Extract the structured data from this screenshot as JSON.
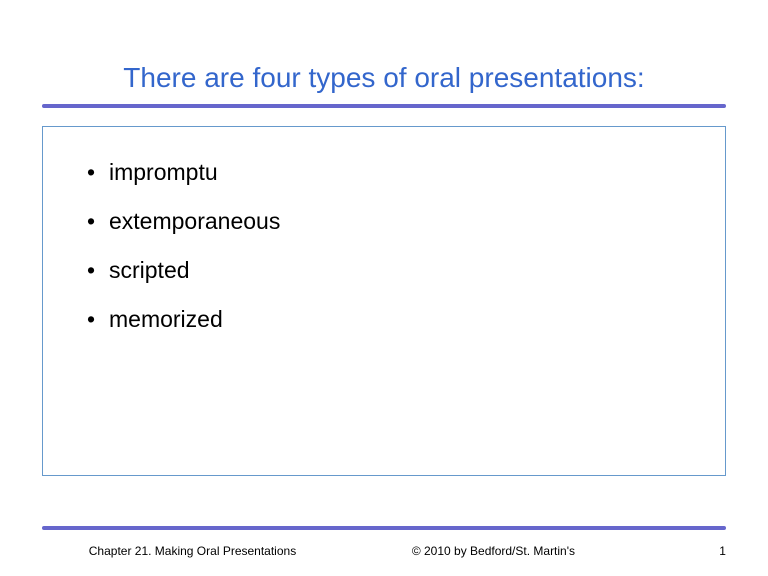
{
  "title": {
    "text": "There are four types of oral presentations:",
    "color": "#3366cc",
    "fontsize": 28
  },
  "divider": {
    "color": "#6666cc",
    "height": 4
  },
  "content_box": {
    "border_color": "#6699cc",
    "border_width": 1
  },
  "bullets": {
    "items": [
      "impromptu",
      "extemporaneous",
      "scripted",
      "memorized"
    ],
    "fontsize": 23,
    "color": "#000000"
  },
  "footer": {
    "chapter": "Chapter 21. Making Oral Presentations",
    "copyright": "© 2010 by Bedford/St. Martin's",
    "page_number": "1",
    "fontsize": 12
  },
  "background_color": "#ffffff"
}
